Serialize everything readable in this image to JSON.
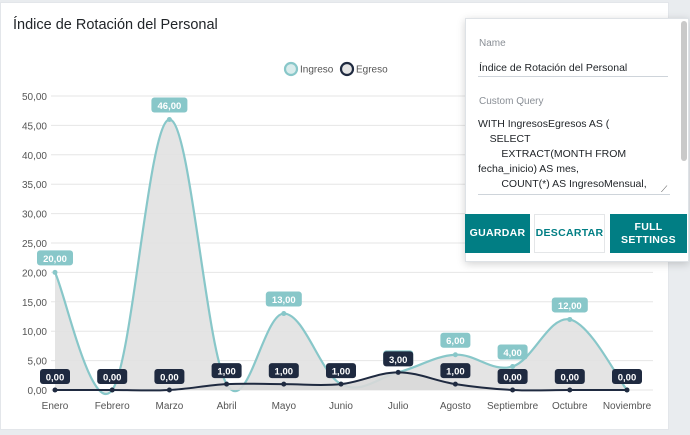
{
  "card": {
    "title": "Índice de Rotación del Personal"
  },
  "panel": {
    "name_label": "Name",
    "name_value": "Índice de Rotación del Personal",
    "query_label": "Custom Query",
    "query_value": "WITH IngresosEgresos AS (\n    SELECT\n        EXTRACT(MONTH FROM\nfecha_inicio) AS mes,\n        COUNT(*) AS IngresoMensual,",
    "save_label": "GUARDAR",
    "discard_label": "DESCARTAR",
    "full_settings_label": "FULL\nSETTINGS"
  },
  "chart_data": {
    "type": "area",
    "categories": [
      "Enero",
      "Febrero",
      "Marzo",
      "Abril",
      "Mayo",
      "Junio",
      "Julio",
      "Agosto",
      "Septiembre",
      "Octubre",
      "Noviembre"
    ],
    "series": [
      {
        "name": "Ingreso",
        "values": [
          20,
          0,
          46,
          1,
          13,
          1,
          3,
          6,
          4,
          12,
          0
        ],
        "labels": [
          "20,00",
          "0,00",
          "46,00",
          "1,00",
          "13,00",
          "1,00",
          "3,00",
          "6,00",
          "4,00",
          "12,00",
          "0,00"
        ],
        "color": "#88c7c9",
        "fill": "#e1e1e1"
      },
      {
        "name": "Egreso",
        "values": [
          0,
          0,
          0,
          1,
          1,
          1,
          3,
          1,
          0,
          0,
          0
        ],
        "labels": [
          "0,00",
          "0,00",
          "0,00",
          "1,00",
          "1,00",
          "1,00",
          "3,00",
          "1,00",
          "0,00",
          "0,00",
          "0,00"
        ],
        "color": "#1f2a40",
        "fill": "#d8d8d8"
      }
    ],
    "yticks": [
      "0,00",
      "5,00",
      "10,00",
      "15,00",
      "20,00",
      "25,00",
      "30,00",
      "35,00",
      "40,00",
      "45,00",
      "50,00"
    ],
    "ylim": [
      0,
      50
    ],
    "grid": true,
    "legend_position": "top-center",
    "label_colors": {
      "ingreso_bg": "#88c7c9",
      "egreso_bg": "#1f2a40"
    }
  }
}
